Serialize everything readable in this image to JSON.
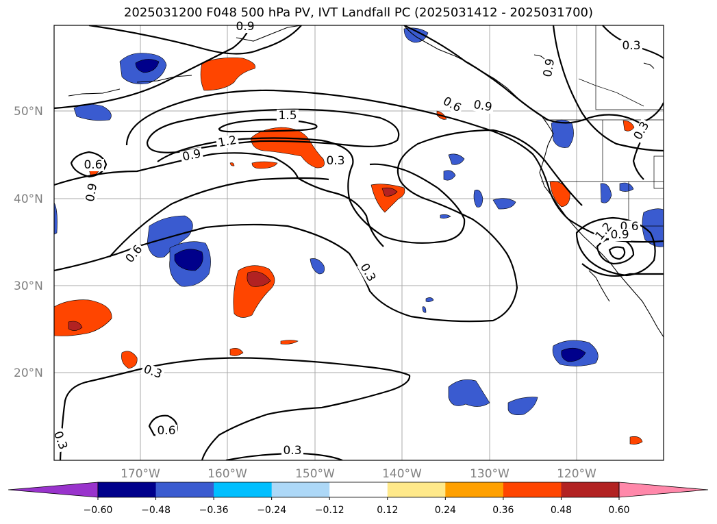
{
  "title": "2025031200 F048 500 hPa PV, IVT Landfall PC (2025031412 - 2025031700)",
  "map": {
    "lat_labels": [
      "50°N",
      "40°N",
      "30°N",
      "20°N"
    ],
    "lon_labels": [
      "170°W",
      "160°W",
      "150°W",
      "140°W",
      "130°W",
      "120°W"
    ],
    "contour_labels": [
      "0.9",
      "0.3",
      "1.5",
      "1.2",
      "0.9",
      "0.3",
      "0.6",
      "0.9",
      "0.6",
      "0.9",
      "0.3",
      "0.6",
      "0.9",
      "0.6",
      "0.3",
      "0.9",
      "1.2",
      "0.3",
      "0.6",
      "0.3",
      "0.3"
    ]
  },
  "colorbar": {
    "colors": [
      "#9933cc",
      "#00008b",
      "#3a5bd0",
      "#00bfff",
      "#add8f7",
      "#ffffff",
      "#ffe98a",
      "#ffa000",
      "#ff4500",
      "#b22222",
      "#ff88aa"
    ],
    "tick_labels": [
      "−0.60",
      "−0.48",
      "−0.36",
      "−0.24",
      "−0.12",
      "0.12",
      "0.24",
      "0.36",
      "0.48",
      "0.60"
    ]
  }
}
